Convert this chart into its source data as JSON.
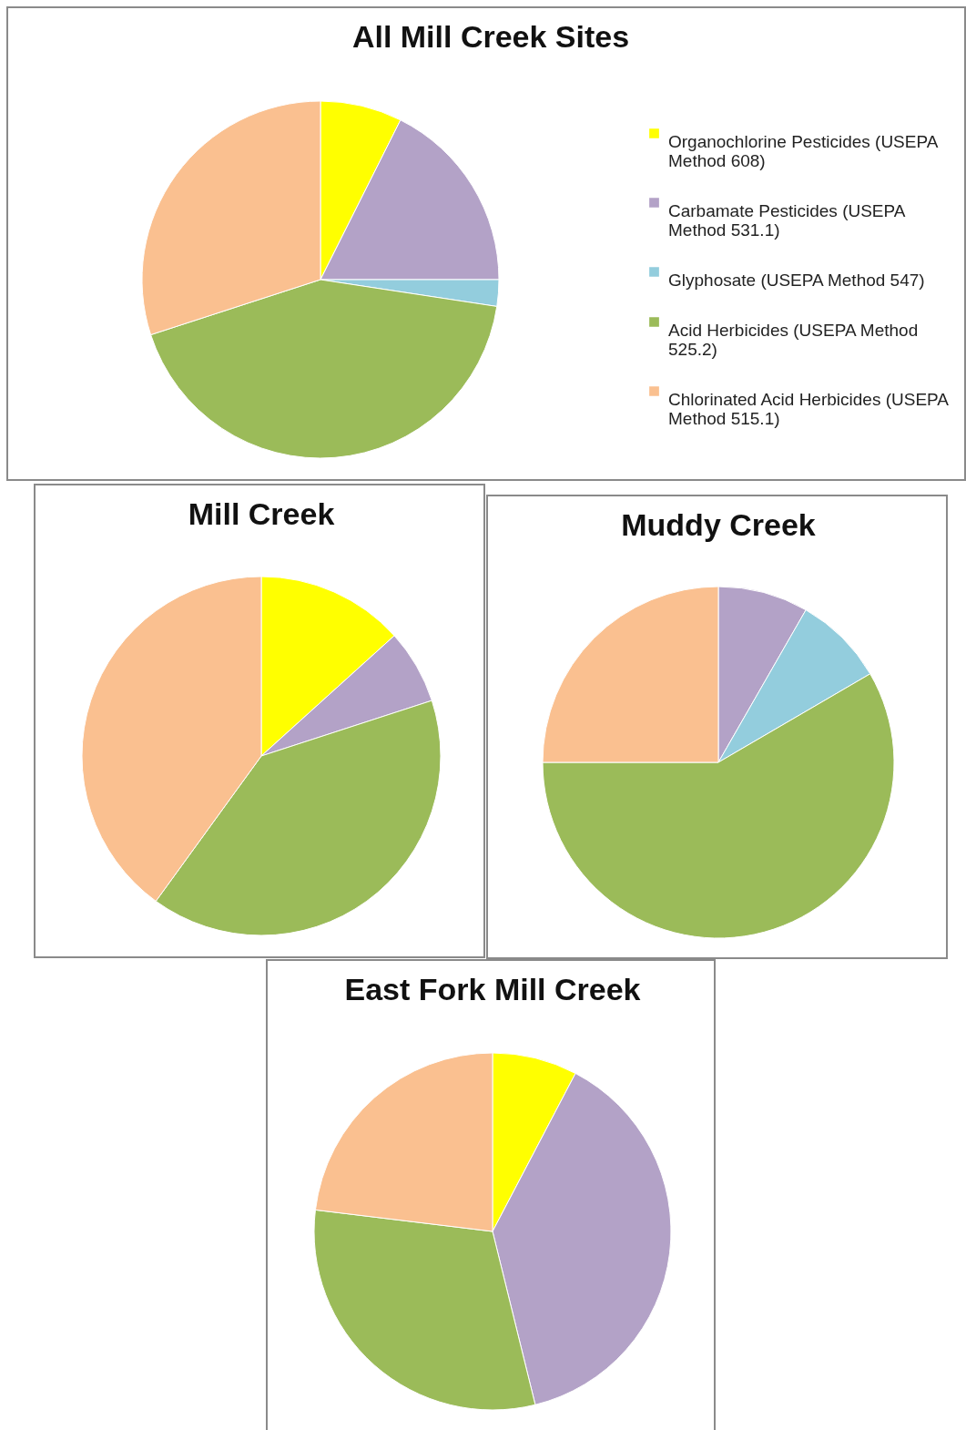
{
  "chart_data": [
    {
      "type": "pie",
      "title": "All Mill Creek Sites",
      "categories": [
        "Organochlorine Pesticides (USEPA Method 608)",
        "Carbamate Pesticides (USEPA Method 531.1)",
        "Glyphosate (USEPA Method 547)",
        "Acid Herbicides   (USEPA Method 525.2)",
        "Chlorinated Acid Herbicides (USEPA Method 515.1)"
      ],
      "values": [
        7.4,
        17.6,
        2.4,
        42.6,
        30
      ],
      "colors": [
        "#ffff00",
        "#b3a2c7",
        "#93cddd",
        "#9bbb59",
        "#fac090"
      ],
      "legend": "right"
    },
    {
      "type": "pie",
      "title": "Mill Creek",
      "categories": [
        null,
        null,
        null,
        null
      ],
      "values": [
        13.3,
        6.7,
        40,
        40
      ],
      "colors": [
        "#ffff00",
        "#b3a2c7",
        "#9bbb59",
        "#fac090"
      ]
    },
    {
      "type": "pie",
      "title": "Muddy Creek",
      "categories": [
        null,
        null,
        null,
        null
      ],
      "values": [
        8.3,
        8.3,
        58.4,
        25
      ],
      "colors": [
        "#b3a2c7",
        "#93cddd",
        "#9bbb59",
        "#fac090"
      ]
    },
    {
      "type": "pie",
      "title": "East Fork Mill Creek",
      "categories": [
        null,
        null,
        null,
        null
      ],
      "values": [
        7.7,
        38.5,
        30.8,
        23.1
      ],
      "colors": [
        "#ffff00",
        "#b3a2c7",
        "#9bbb59",
        "#fac090"
      ]
    }
  ]
}
